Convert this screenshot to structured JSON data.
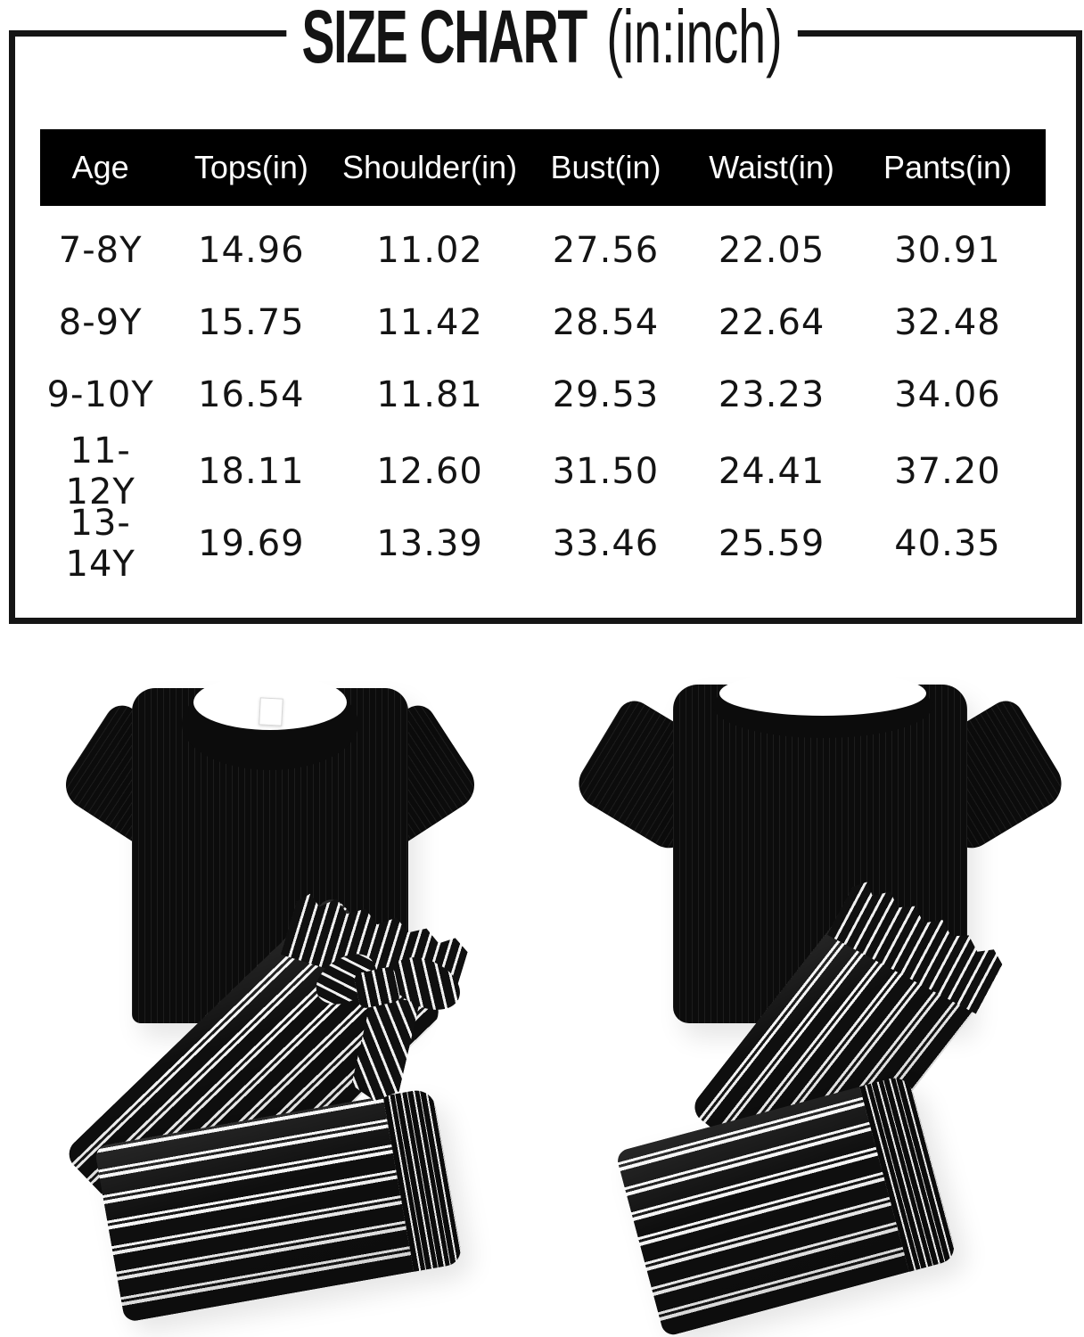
{
  "size_chart": {
    "title": {
      "main": "SIZE CHART",
      "unit": "(in:inch)"
    },
    "headers": [
      "Age",
      "Tops(in)",
      "Shoulder(in)",
      "Bust(in)",
      "Waist(in)",
      "Pants(in)"
    ],
    "rows": [
      [
        "7-8Y",
        "14.96",
        "11.02",
        "27.56",
        "22.05",
        "30.91"
      ],
      [
        "8-9Y",
        "15.75",
        "11.42",
        "28.54",
        "22.64",
        "32.48"
      ],
      [
        "9-10Y",
        "16.54",
        "11.81",
        "29.53",
        "23.23",
        "34.06"
      ],
      [
        "11-12Y",
        "18.11",
        "12.60",
        "31.50",
        "24.41",
        "37.20"
      ],
      [
        "13-14Y",
        "19.69",
        "13.39",
        "33.46",
        "25.59",
        "40.35"
      ]
    ],
    "colors": {
      "frame": "#151515",
      "header_bg": "#000000",
      "header_text": "#ffffff",
      "row_text": "#141414",
      "background": "#ffffff",
      "garment_black": "#0c0c0c",
      "stripe_white": "#f5f5f5"
    }
  },
  "chart_data": {
    "type": "table",
    "title": "SIZE CHART (in:inch)",
    "columns": [
      "Age",
      "Tops(in)",
      "Shoulder(in)",
      "Bust(in)",
      "Waist(in)",
      "Pants(in)"
    ],
    "rows": [
      [
        "7-8Y",
        14.96,
        11.02,
        27.56,
        22.05,
        30.91
      ],
      [
        "8-9Y",
        15.75,
        11.42,
        28.54,
        22.64,
        32.48
      ],
      [
        "9-10Y",
        16.54,
        11.81,
        29.53,
        23.23,
        34.06
      ],
      [
        "11-12Y",
        18.11,
        12.6,
        31.5,
        24.41,
        37.2
      ],
      [
        "13-14Y",
        19.69,
        13.39,
        33.46,
        25.59,
        40.35
      ]
    ]
  }
}
